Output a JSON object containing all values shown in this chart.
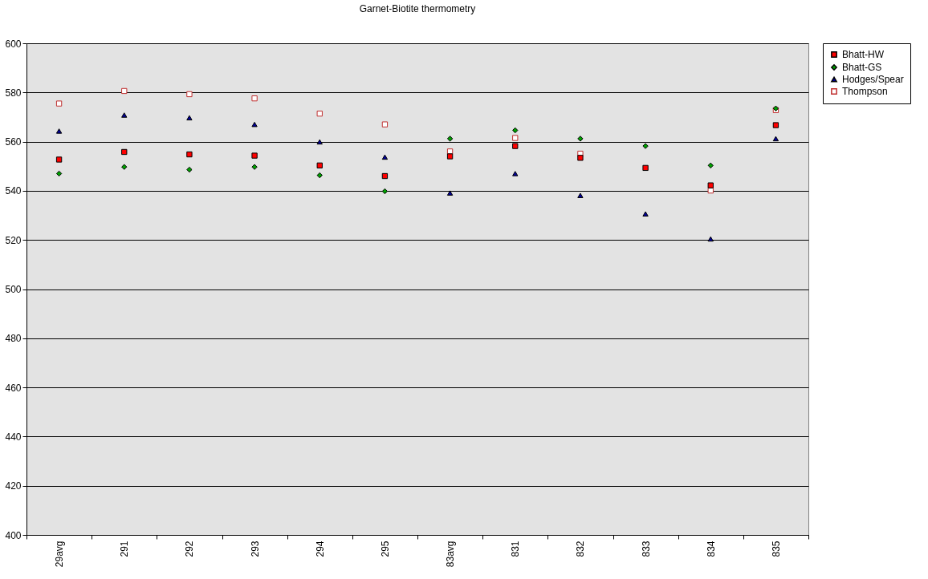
{
  "chart_data": {
    "type": "scatter",
    "title": "Garnet-Biotite thermometry",
    "categories": [
      "29avg",
      "291",
      "292",
      "293",
      "294",
      "295",
      "83avg",
      "831",
      "832",
      "833",
      "834",
      "835"
    ],
    "series": [
      {
        "name": "Bhatt-HW",
        "color": "#ff0000",
        "marker": "square",
        "values": [
          552.7,
          555.8,
          554.8,
          554.3,
          550.3,
          546,
          554,
          558.2,
          553.4,
          549.3,
          542.2,
          566.7
        ]
      },
      {
        "name": "Bhatt-GS",
        "color": "#00a000",
        "marker": "diamond",
        "values": [
          547,
          549.7,
          548.6,
          549.7,
          546.3,
          539.8,
          561.2,
          564.6,
          561.2,
          558.2,
          550.3,
          573.5
        ]
      },
      {
        "name": "Hodges/Spear",
        "color": "#000099",
        "marker": "triangle",
        "values": [
          564.3,
          570.8,
          569.7,
          567,
          559.9,
          553.7,
          539.1,
          547,
          538.1,
          530.6,
          520.4,
          561.2
        ]
      },
      {
        "name": "Thompson",
        "color": "#c03030",
        "marker": "square_open",
        "values": [
          575.5,
          580.6,
          579.3,
          577.6,
          571.4,
          567,
          556,
          561.5,
          555.1,
          null,
          540.1,
          572.8
        ]
      }
    ],
    "ylim": [
      400,
      600
    ],
    "yticks": [
      400,
      420,
      440,
      460,
      480,
      500,
      520,
      540,
      560,
      580,
      600
    ],
    "grid": "y",
    "legend": "right"
  }
}
